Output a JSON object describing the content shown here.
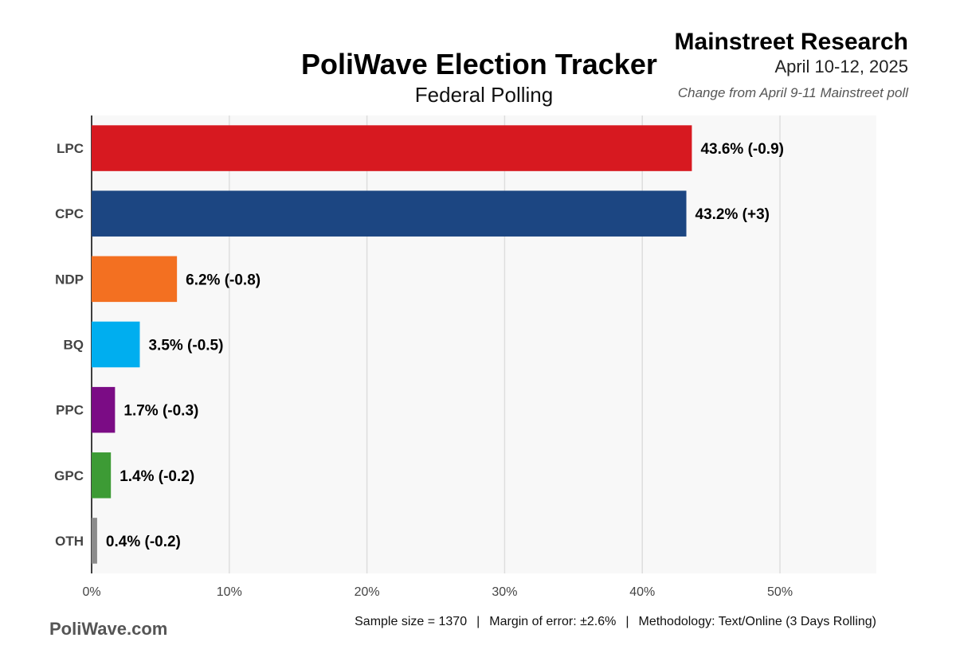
{
  "header": {
    "title": "PoliWave Election Tracker",
    "subtitle": "Federal Polling",
    "pollster": "Mainstreet Research",
    "date": "April 10-12, 2025",
    "change_note": "Change from April 9-11 Mainstreet poll"
  },
  "footer": {
    "brand": "PoliWave.com",
    "sample": "Sample size = 1370",
    "margin": "Margin of error: ±2.6%",
    "methodology": "Methodology: Text/Online (3 Days Rolling)",
    "separator": "|"
  },
  "chart_data": {
    "type": "bar",
    "orientation": "horizontal",
    "categories": [
      "LPC",
      "CPC",
      "NDP",
      "BQ",
      "PPC",
      "GPC",
      "OTH"
    ],
    "values": [
      43.6,
      43.2,
      6.2,
      3.5,
      1.7,
      1.4,
      0.4
    ],
    "value_labels": [
      "43.6% (-0.9)",
      "43.2% (+3)",
      "6.2% (-0.8)",
      "3.5% (-0.5)",
      "1.7% (-0.3)",
      "1.4% (-0.2)",
      "0.4% (-0.2)"
    ],
    "colors": [
      "#d71920",
      "#1c4682",
      "#f37021",
      "#00aeef",
      "#7b0c85",
      "#3d9b35",
      "#8c8c8c"
    ],
    "xlim": [
      0,
      57
    ],
    "xticks": [
      0,
      10,
      20,
      30,
      40,
      50
    ],
    "xtick_labels": [
      "0%",
      "10%",
      "20%",
      "30%",
      "40%",
      "50%"
    ],
    "grid": true,
    "legend": "none"
  }
}
